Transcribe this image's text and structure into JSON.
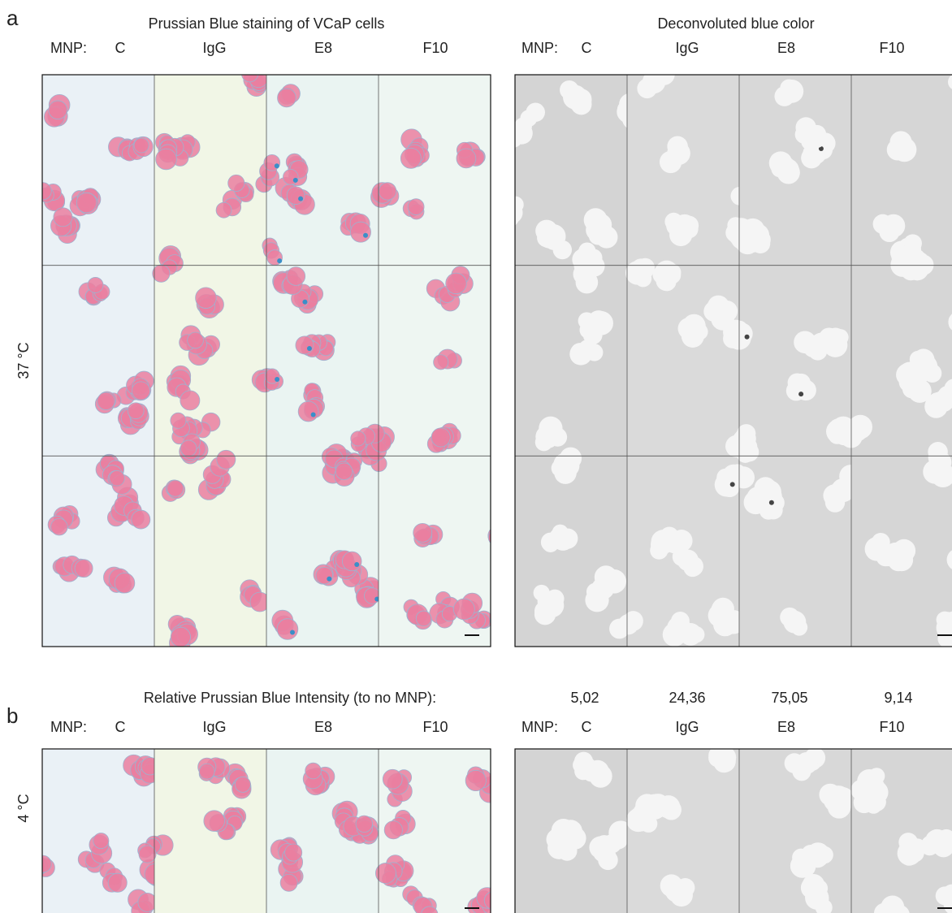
{
  "panel_a": {
    "label": "a",
    "left_title": "Prussian Blue staining of VCaP cells",
    "right_title": "Deconvoluted blue color",
    "mnp_label": "MNP:",
    "columns": [
      "C",
      "IgG",
      "E8",
      "F10"
    ],
    "row_label": "37 °C",
    "intensity_label": "Relative Prussian Blue Intensity (to no MNP):",
    "intensity_values": [
      "5,02",
      "24,36",
      "75,05",
      "9,14"
    ]
  },
  "panel_b": {
    "label": "b",
    "mnp_label": "MNP:",
    "columns": [
      "C",
      "IgG",
      "E8",
      "F10"
    ],
    "row_label": "4 °C"
  }
}
